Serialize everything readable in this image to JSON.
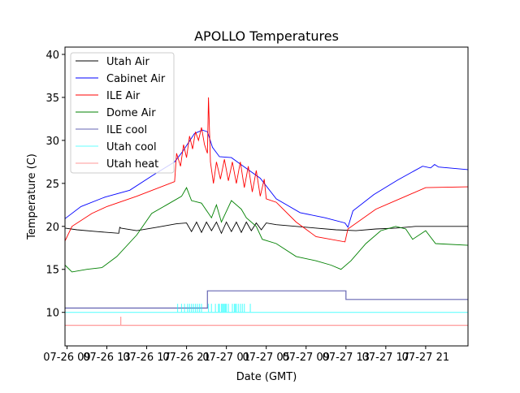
{
  "chart_data": {
    "type": "line",
    "title": "APOLLO Temperatures",
    "xlabel": "Date (GMT)",
    "ylabel": "Temperature (C)",
    "x_units": "hours since 07-26 00:00 GMT",
    "xlim": [
      8.8,
      49.25
    ],
    "ylim": [
      6.1,
      40.85
    ],
    "grid": false,
    "legend_position": "top-left",
    "xticks": [
      {
        "value": 9,
        "label": "07-26 09"
      },
      {
        "value": 13,
        "label": "07-26 13"
      },
      {
        "value": 17,
        "label": "07-26 17"
      },
      {
        "value": 21,
        "label": "07-26 21"
      },
      {
        "value": 25,
        "label": "07-27 01"
      },
      {
        "value": 29,
        "label": "07-27 05"
      },
      {
        "value": 33,
        "label": "07-27 09"
      },
      {
        "value": 37,
        "label": "07-27 13"
      },
      {
        "value": 41,
        "label": "07-27 17"
      },
      {
        "value": 45,
        "label": "07-27 21"
      }
    ],
    "yticks": [
      10,
      15,
      20,
      25,
      30,
      35,
      40
    ],
    "series": [
      {
        "name": "Utah Air",
        "color": "#000000",
        "opacity": 1,
        "x": [
          8.8,
          10,
          12,
          14.2,
          14.3,
          14.4,
          16,
          18,
          20,
          21,
          21.5,
          22,
          22.5,
          23,
          23.5,
          24,
          24.5,
          25,
          25.5,
          26,
          26.5,
          27,
          27.5,
          28,
          28.5,
          29,
          30,
          32,
          34,
          36,
          38,
          40,
          42,
          44,
          46,
          49.25
        ],
        "y": [
          19.8,
          19.6,
          19.4,
          19.2,
          19.9,
          19.8,
          19.5,
          19.9,
          20.3,
          20.4,
          19.4,
          20.5,
          19.3,
          20.5,
          19.5,
          20.5,
          19.2,
          20.5,
          19.4,
          20.5,
          19.3,
          20.5,
          19.5,
          20.4,
          19.6,
          20.4,
          20.2,
          20.0,
          19.8,
          19.6,
          19.5,
          19.7,
          19.8,
          20.0,
          20.0,
          20.0
        ]
      },
      {
        "name": "Cabinet Air",
        "color": "#0000ff",
        "opacity": 1,
        "x": [
          8.8,
          10.4,
          12.8,
          15.3,
          17.7,
          19.8,
          20.6,
          21.8,
          22.6,
          23.1,
          23.6,
          24.3,
          25.5,
          26.7,
          28.4,
          30.0,
          32.4,
          34.9,
          36.9,
          37.2,
          37.7,
          39.8,
          42.2,
          44.7,
          45.5,
          45.9,
          46.3,
          49.25
        ],
        "y": [
          20.9,
          22.3,
          23.4,
          24.2,
          26.0,
          27.5,
          28.7,
          30.8,
          31.2,
          31.0,
          29.2,
          28.1,
          28.0,
          27.0,
          25.6,
          23.2,
          21.6,
          21.0,
          20.4,
          19.9,
          21.8,
          23.7,
          25.4,
          27.0,
          26.8,
          27.2,
          26.9,
          26.6
        ]
      },
      {
        "name": "ILE Air",
        "color": "#ff0000",
        "opacity": 1,
        "x": [
          8.8,
          9.5,
          11.5,
          13,
          16,
          19.8,
          20.0,
          20.4,
          20.7,
          21.0,
          21.3,
          21.6,
          21.9,
          22.2,
          22.5,
          22.8,
          23.1,
          23.2,
          23.4,
          23.7,
          24.0,
          24.4,
          24.8,
          25.2,
          25.6,
          26.0,
          26.4,
          26.8,
          27.2,
          27.6,
          28.0,
          28.4,
          28.8,
          29.0,
          30,
          32,
          34,
          36.9,
          37.2,
          40,
          43,
          45,
          49.25
        ],
        "y": [
          18.3,
          20.0,
          21.5,
          22.3,
          23.5,
          25.2,
          28.5,
          27.0,
          29.5,
          28.0,
          30.5,
          29.0,
          31.0,
          30.0,
          31.5,
          29.5,
          28.5,
          35.0,
          27.5,
          25.0,
          27.5,
          25.5,
          27.8,
          25.3,
          27.5,
          25.0,
          27.5,
          24.5,
          27.0,
          24.0,
          26.5,
          23.5,
          25.5,
          23.2,
          22.8,
          20.5,
          18.8,
          18.2,
          19.7,
          22.0,
          23.5,
          24.5,
          24.6
        ]
      },
      {
        "name": "Dome Air",
        "color": "#008000",
        "opacity": 1,
        "x": [
          8.8,
          9.5,
          11,
          12.5,
          14,
          16,
          17.5,
          19,
          20.5,
          21,
          21.5,
          22.5,
          23.5,
          24,
          24.5,
          25.5,
          26.5,
          27,
          28,
          28.6,
          30,
          32,
          34,
          35.5,
          36.5,
          37.5,
          39,
          40.5,
          42,
          43,
          43.7,
          45,
          46,
          49.25
        ],
        "y": [
          15.5,
          14.7,
          15.0,
          15.2,
          16.5,
          19.0,
          21.5,
          22.5,
          23.5,
          24.5,
          23.0,
          22.7,
          21.0,
          22.5,
          20.5,
          23.0,
          22.0,
          21.0,
          20.0,
          18.5,
          18.0,
          16.5,
          16.0,
          15.5,
          15.0,
          16.0,
          18.0,
          19.5,
          20.0,
          19.7,
          18.5,
          19.5,
          18.0,
          17.8
        ]
      },
      {
        "name": "ILE cool",
        "color": "#000080",
        "opacity": 0.6,
        "x": [
          8.8,
          23.1,
          23.1,
          37.0,
          37.0,
          49.25
        ],
        "y": [
          10.5,
          10.5,
          12.5,
          12.5,
          11.5,
          11.5
        ]
      },
      {
        "name": "Utah cool",
        "color": "#00ffff",
        "opacity": 0.6,
        "x": [
          8.8,
          49.25
        ],
        "y": [
          10.0,
          10.0
        ],
        "spikes_to": 11.0,
        "spike_x": [
          20.1,
          20.5,
          20.8,
          21.1,
          21.3,
          21.5,
          21.7,
          21.9,
          22.1,
          22.3,
          22.5,
          23.2,
          23.5,
          23.9,
          24.2,
          24.3,
          24.5,
          24.6,
          24.7,
          24.8,
          24.9,
          25.0,
          25.2,
          25.6,
          25.8,
          25.9,
          26.0,
          26.2,
          26.4,
          26.6,
          26.8,
          27.4
        ]
      },
      {
        "name": "Utah heat",
        "color": "#ff0000",
        "opacity": 0.4,
        "x": [
          8.8,
          49.25
        ],
        "y": [
          8.5,
          8.5
        ],
        "spikes_to": 9.5,
        "spike_x": [
          14.4
        ]
      }
    ]
  }
}
